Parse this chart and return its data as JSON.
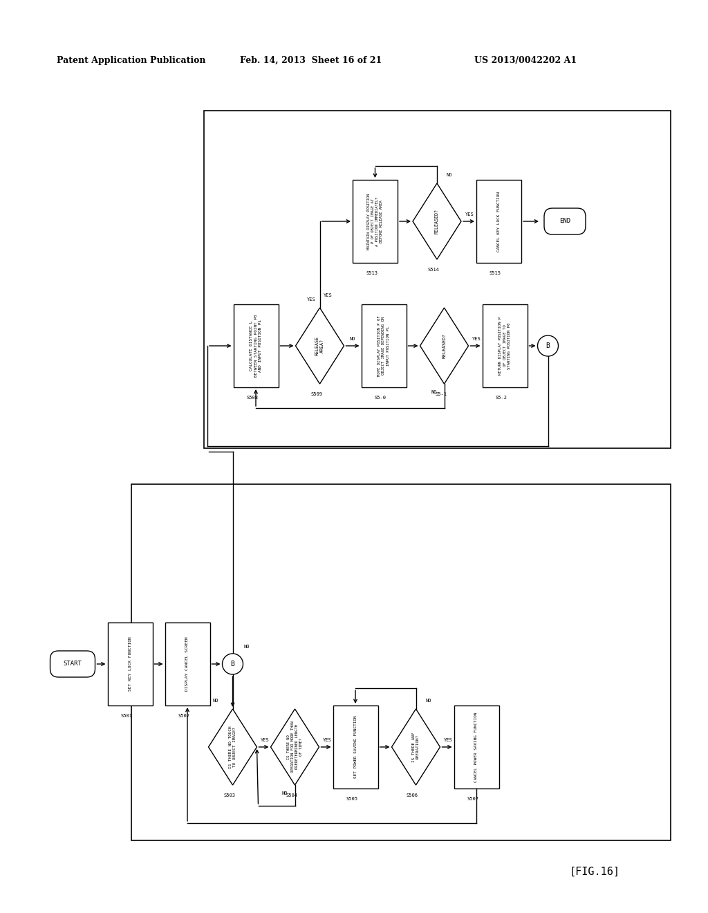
{
  "title_left": "Patent Application Publication",
  "title_mid": "Feb. 14, 2013  Sheet 16 of 21",
  "title_right": "US 2013/0042202 A1",
  "fig_label": "[FIG.16]",
  "background": "#ffffff",
  "line_color": "#000000",
  "text_color": "#000000"
}
